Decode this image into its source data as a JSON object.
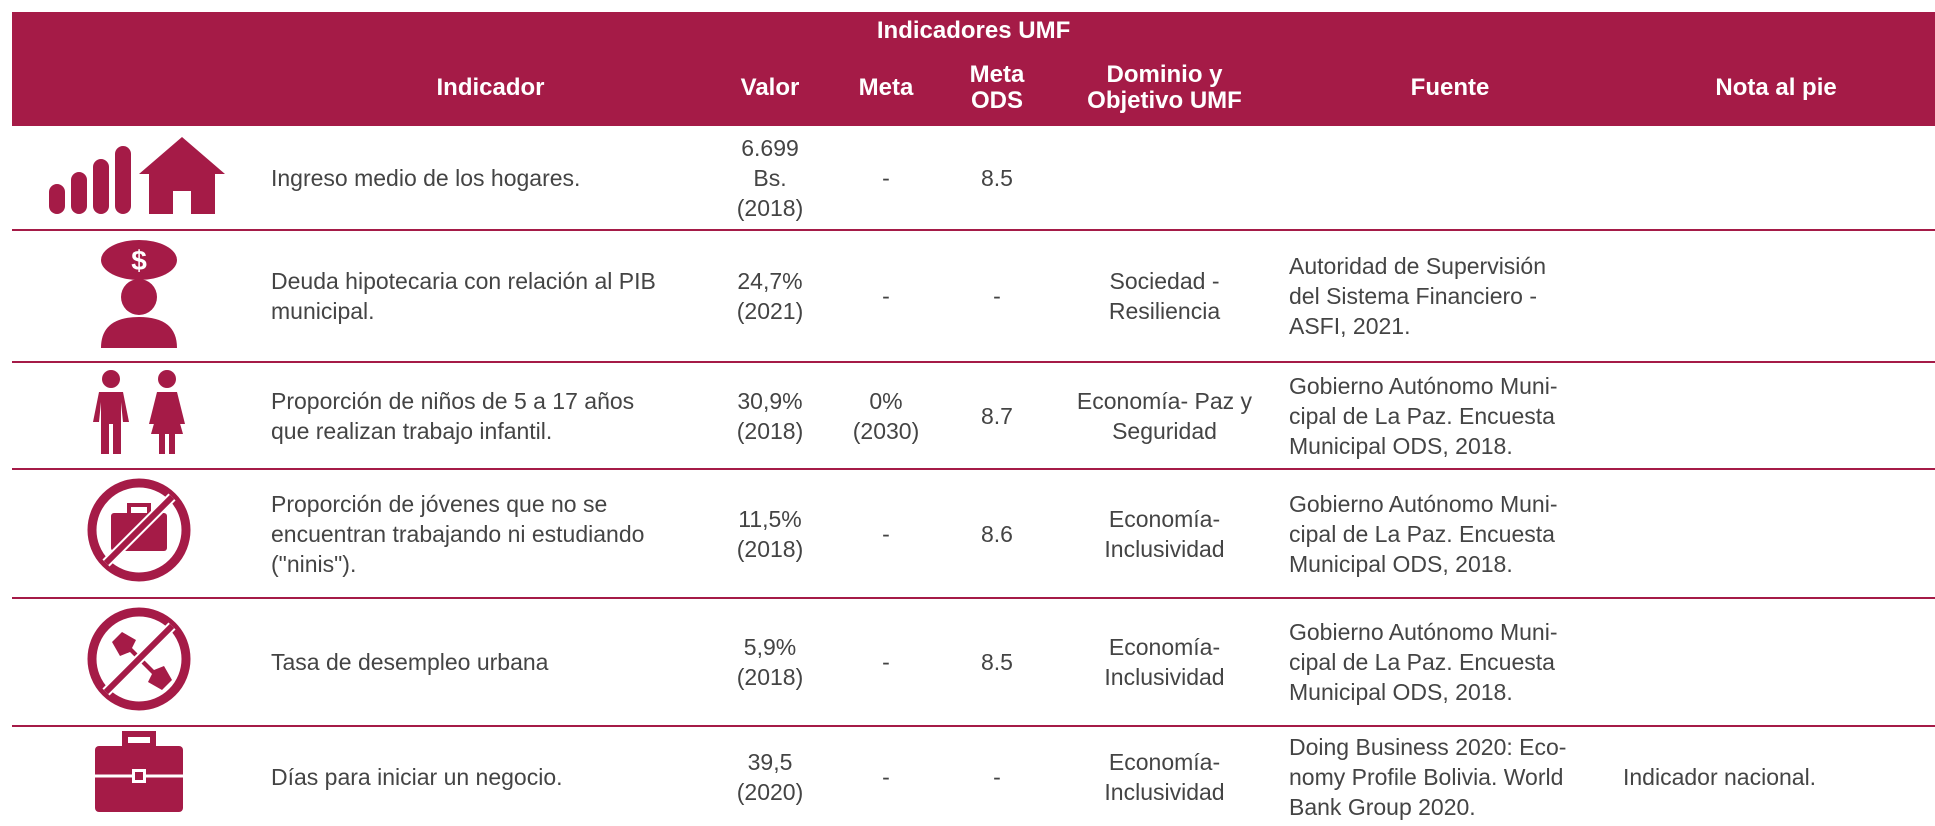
{
  "title": "Indicadores UMF",
  "columns": [
    "Indicador",
    "Valor",
    "Meta",
    "Meta\nODS",
    "Dominio y\nObjetivo UMF",
    "Fuente",
    "Nota al pie"
  ],
  "rows": [
    {
      "indicador": "Ingreso medio de los hogares.",
      "valor": "6.699\nBs.\n(2018)",
      "meta": "-",
      "meta_ods": "8.5"
    },
    {
      "indicador": "Deuda hipotecaria con relación al PIB\nmunicipal.",
      "valor": "24,7%\n(2021)",
      "meta": "-",
      "meta_ods": "-",
      "dominio": "Sociedad -\nResiliencia",
      "fuente": "Autoridad de Supervisión\ndel Sistema Financiero -\nASFI, 2021."
    },
    {
      "indicador": "Proporción de niños de 5 a 17 años\nque realizan trabajo infantil.",
      "valor": "30,9%\n(2018)",
      "meta": "0%\n(2030)",
      "meta_ods": "8.7",
      "dominio": "Economía- Paz y\nSeguridad",
      "fuente": "Gobierno Autónomo Muni-\ncipal de La Paz. Encuesta\nMunicipal ODS, 2018."
    },
    {
      "indicador": "Proporción de jóvenes que no se\nencuentran trabajando ni estudiando\n(\"ninis\").",
      "valor": "11,5%\n(2018)",
      "meta": "-",
      "meta_ods": "8.6",
      "dominio": "Economía-\nInclusividad",
      "fuente": "Gobierno Autónomo Muni-\ncipal de La Paz. Encuesta\nMunicipal ODS, 2018."
    },
    {
      "indicador": "Tasa de desempleo urbana",
      "valor": "5,9%\n(2018)",
      "meta": "-",
      "meta_ods": "8.5",
      "dominio": "Economía-\nInclusividad",
      "fuente": "Gobierno Autónomo Muni-\ncipal de La Paz. Encuesta\nMunicipal ODS, 2018."
    },
    {
      "indicador": "Días para iniciar un negocio.",
      "valor": "39,5\n(2020)",
      "meta": "-",
      "meta_ods": "-",
      "dominio": "Economía-\nInclusividad",
      "fuente": "Doing Business 2020: Eco-\nnomy Profile Bolivia. World\nBank Group 2020.",
      "nota": "Indicador nacional."
    }
  ]
}
